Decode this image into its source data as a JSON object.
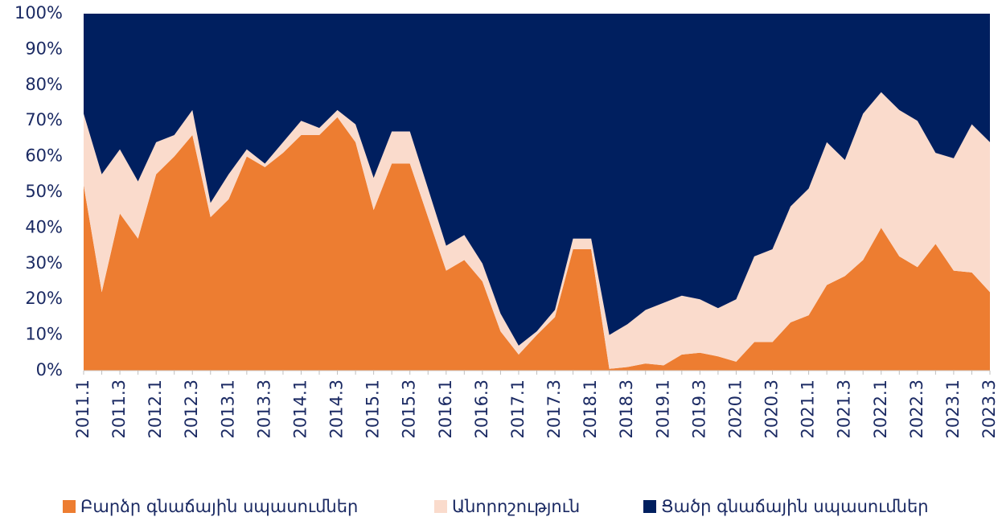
{
  "chart_data": {
    "type": "stacked_area",
    "categories": [
      "2011.1",
      null,
      "2011.3",
      null,
      "2012.1",
      null,
      "2012.3",
      null,
      "2013.1",
      null,
      "2013.3",
      null,
      "2014.1",
      null,
      "2014.3",
      null,
      "2015.1",
      null,
      "2015.3",
      null,
      "2016.1",
      null,
      "2016.3",
      null,
      "2017.1",
      null,
      "2017.3",
      null,
      "2018.1",
      null,
      "2018.3",
      null,
      "2019.1",
      null,
      "2019.3",
      null,
      "2020.1",
      null,
      "2020.3",
      null,
      "2021.1",
      null,
      "2021.3",
      null,
      "2022.1",
      null,
      "2022.3",
      null,
      "2023.1",
      null,
      "2023.3"
    ],
    "series": [
      {
        "name": "Բարձր գնաճային սպասումներ",
        "color": "#ed7d31",
        "values": [
          52,
          22,
          44,
          37,
          55,
          60,
          66,
          43,
          48,
          60,
          57,
          61,
          66,
          66,
          71,
          64,
          45,
          58,
          58,
          43,
          28,
          31,
          25,
          11,
          4.5,
          10,
          15,
          34,
          34,
          0.5,
          1,
          2,
          1.5,
          4.5,
          5,
          4,
          2.5,
          8,
          8,
          13.5,
          15.5,
          24,
          26.5,
          31,
          40,
          32,
          29,
          35.5,
          28,
          27.5,
          22
        ]
      },
      {
        "name": "Անորոշություն",
        "color": "#fadbcc",
        "values": [
          20,
          33,
          18,
          16,
          9,
          6,
          7,
          4,
          7,
          2,
          1,
          3,
          4,
          2,
          2,
          5,
          9,
          9,
          9,
          8,
          7,
          7,
          5,
          5,
          2.5,
          1,
          2,
          3,
          3,
          9.5,
          12,
          15,
          17.5,
          16.5,
          15,
          13.5,
          17.5,
          24,
          26,
          32.5,
          35.5,
          40,
          32.5,
          41,
          38,
          41,
          41,
          25.5,
          31.5,
          41.5,
          42
        ]
      },
      {
        "name": "Ցածր գնաճային սպասումներ",
        "color": "#001f5f",
        "values": [
          28,
          45,
          38,
          47,
          36,
          34,
          27,
          53,
          45,
          38,
          42,
          36,
          30,
          32,
          27,
          31,
          46,
          33,
          33,
          49,
          65,
          62,
          70,
          84,
          93,
          89,
          83,
          63,
          63,
          90,
          87,
          83,
          81,
          79,
          80,
          82.5,
          80,
          68,
          66,
          54,
          49,
          36,
          41,
          28,
          22,
          27,
          30,
          39,
          40.5,
          31,
          36
        ]
      }
    ],
    "ylim": [
      0,
      100
    ],
    "yticks": [
      {
        "value": 0,
        "label": "0%"
      },
      {
        "value": 10,
        "label": "10%"
      },
      {
        "value": 20,
        "label": "20%"
      },
      {
        "value": 30,
        "label": "30%"
      },
      {
        "value": 40,
        "label": "40%"
      },
      {
        "value": 50,
        "label": "50%"
      },
      {
        "value": 60,
        "label": "60%"
      },
      {
        "value": 70,
        "label": "70%"
      },
      {
        "value": 80,
        "label": "80%"
      },
      {
        "value": 90,
        "label": "90%"
      },
      {
        "value": 100,
        "label": "100%"
      }
    ],
    "legend": "bottom"
  }
}
